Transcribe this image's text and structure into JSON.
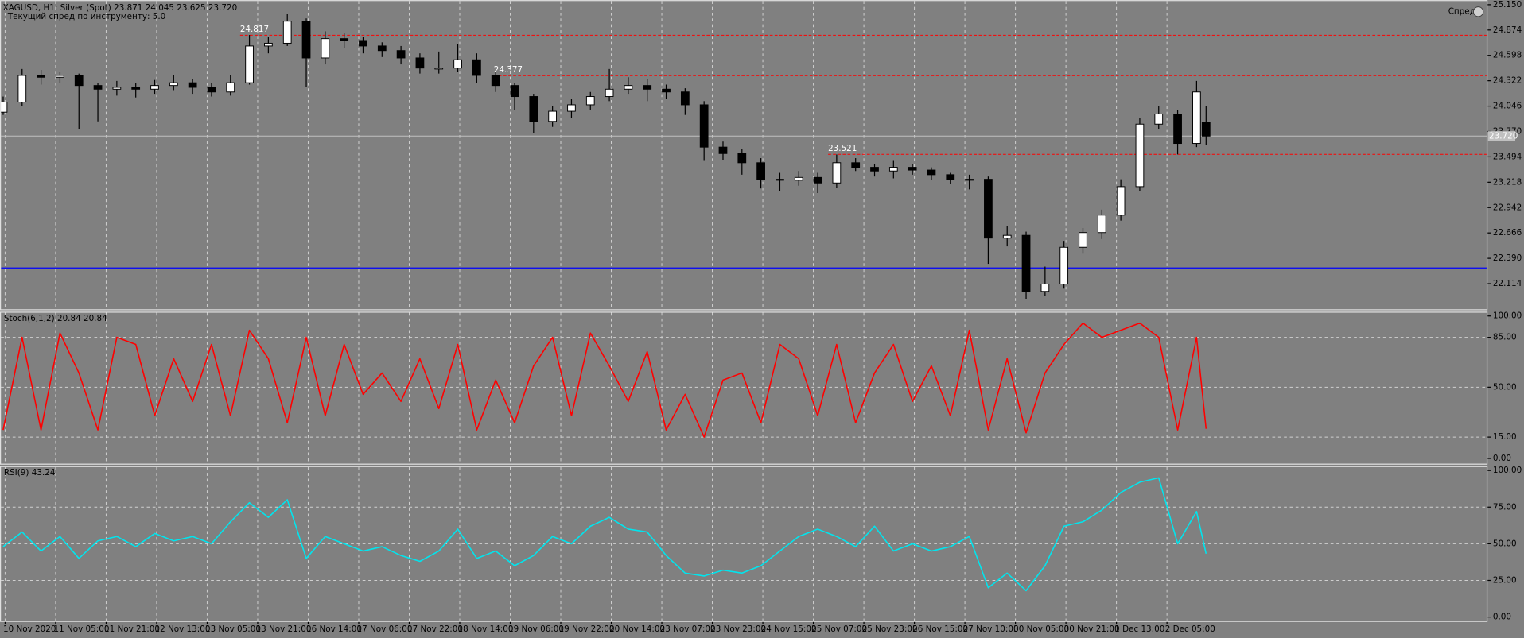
{
  "chart_data": [
    {
      "type": "candlestick",
      "title": "XAGUSD, H1:  Silver (Spot)  23.871 24.045 23.625 23.720",
      "subtitle": "Текущий спред по инструменту: 5.0",
      "button": "Спред",
      "x": [
        0,
        6,
        12,
        18,
        24,
        30,
        36,
        42,
        48,
        54,
        60,
        66,
        72,
        78,
        84,
        90,
        96,
        102,
        108,
        114,
        120,
        126,
        132,
        138,
        144,
        150,
        156,
        162,
        168,
        174,
        180,
        186,
        192,
        198,
        204,
        210,
        216,
        222,
        228,
        234,
        240,
        246,
        252,
        258,
        264,
        270,
        276,
        282,
        288,
        294,
        300,
        306,
        312,
        318,
        324,
        330,
        336,
        342,
        348,
        354,
        360,
        366,
        372,
        378,
        381
      ],
      "ohlc": [
        [
          23.98,
          24.15,
          23.95,
          24.09
        ],
        [
          24.09,
          24.45,
          24.05,
          24.38
        ],
        [
          24.38,
          24.44,
          24.28,
          24.36
        ],
        [
          24.36,
          24.42,
          24.3,
          24.38
        ],
        [
          24.38,
          24.4,
          23.8,
          24.27
        ],
        [
          24.27,
          24.3,
          23.88,
          24.23
        ],
        [
          24.23,
          24.32,
          24.16,
          24.25
        ],
        [
          24.25,
          24.3,
          24.14,
          24.23
        ],
        [
          24.23,
          24.33,
          24.18,
          24.27
        ],
        [
          24.27,
          24.38,
          24.22,
          24.3
        ],
        [
          24.3,
          24.34,
          24.18,
          24.25
        ],
        [
          24.25,
          24.3,
          24.15,
          24.2
        ],
        [
          24.2,
          24.38,
          24.16,
          24.3
        ],
        [
          24.3,
          24.82,
          24.28,
          24.7
        ],
        [
          24.7,
          24.8,
          24.62,
          24.73
        ],
        [
          24.73,
          25.05,
          24.7,
          24.97
        ],
        [
          24.97,
          25.0,
          24.25,
          24.57
        ],
        [
          24.57,
          24.86,
          24.5,
          24.78
        ],
        [
          24.78,
          24.84,
          24.68,
          24.76
        ],
        [
          24.76,
          24.8,
          24.62,
          24.7
        ],
        [
          24.7,
          24.74,
          24.58,
          24.65
        ],
        [
          24.65,
          24.7,
          24.5,
          24.57
        ],
        [
          24.57,
          24.62,
          24.4,
          24.46
        ],
        [
          24.46,
          24.64,
          24.4,
          24.46
        ],
        [
          24.46,
          24.72,
          24.42,
          24.55
        ],
        [
          24.55,
          24.62,
          24.3,
          24.38
        ],
        [
          24.38,
          24.42,
          24.2,
          24.27
        ],
        [
          24.27,
          24.3,
          24.0,
          24.15
        ],
        [
          24.15,
          24.18,
          23.75,
          23.88
        ],
        [
          23.88,
          24.05,
          23.82,
          23.99
        ],
        [
          23.99,
          24.12,
          23.92,
          24.06
        ],
        [
          24.06,
          24.2,
          24.0,
          24.15
        ],
        [
          24.15,
          24.45,
          24.1,
          24.23
        ],
        [
          24.23,
          24.36,
          24.18,
          24.27
        ],
        [
          24.27,
          24.34,
          24.1,
          24.23
        ],
        [
          24.23,
          24.28,
          24.12,
          24.2
        ],
        [
          24.2,
          24.24,
          23.95,
          24.06
        ],
        [
          24.06,
          24.1,
          23.45,
          23.6
        ],
        [
          23.6,
          23.66,
          23.46,
          23.53
        ],
        [
          23.53,
          23.58,
          23.3,
          23.43
        ],
        [
          23.43,
          23.48,
          23.15,
          23.25
        ],
        [
          23.25,
          23.32,
          23.12,
          23.24
        ],
        [
          23.24,
          23.34,
          23.18,
          23.27
        ],
        [
          23.27,
          23.32,
          23.1,
          23.21
        ],
        [
          23.21,
          23.52,
          23.16,
          23.43
        ],
        [
          23.43,
          23.48,
          23.34,
          23.38
        ],
        [
          23.38,
          23.42,
          23.28,
          23.34
        ],
        [
          23.34,
          23.45,
          23.26,
          23.38
        ],
        [
          23.38,
          23.42,
          23.3,
          23.35
        ],
        [
          23.35,
          23.38,
          23.24,
          23.3
        ],
        [
          23.3,
          23.32,
          23.2,
          23.25
        ],
        [
          23.25,
          23.3,
          23.14,
          23.25
        ],
        [
          23.25,
          23.28,
          22.33,
          22.61
        ],
        [
          22.61,
          22.74,
          22.52,
          22.64
        ],
        [
          22.64,
          22.68,
          21.95,
          22.03
        ],
        [
          22.03,
          22.3,
          21.98,
          22.11
        ],
        [
          22.11,
          22.58,
          22.06,
          22.51
        ],
        [
          22.51,
          22.72,
          22.44,
          22.67
        ],
        [
          22.67,
          22.92,
          22.6,
          22.86
        ],
        [
          22.86,
          23.25,
          22.8,
          23.17
        ],
        [
          23.17,
          23.92,
          23.12,
          23.85
        ],
        [
          23.85,
          24.05,
          23.8,
          23.96
        ],
        [
          23.96,
          24.0,
          23.52,
          23.64
        ],
        [
          23.64,
          24.32,
          23.6,
          24.2
        ],
        [
          23.871,
          24.045,
          23.625,
          23.72
        ]
      ],
      "bull_color": "#ffffff",
      "bear_color": "#000000",
      "wick_color": "#000000",
      "xlim": [
        -1,
        470
      ],
      "xticks": [
        {
          "value": 0,
          "label": "10 Nov 2020"
        },
        {
          "value": 16,
          "label": "11 Nov 05:00"
        },
        {
          "value": 32,
          "label": "11 Nov 21:00"
        },
        {
          "value": 48,
          "label": "12 Nov 13:00"
        },
        {
          "value": 64,
          "label": "13 Nov 05:00"
        },
        {
          "value": 80,
          "label": "13 Nov 21:00"
        },
        {
          "value": 96,
          "label": "16 Nov 14:00"
        },
        {
          "value": 112,
          "label": "17 Nov 06:00"
        },
        {
          "value": 128,
          "label": "17 Nov 22:00"
        },
        {
          "value": 144,
          "label": "18 Nov 14:00"
        },
        {
          "value": 160,
          "label": "19 Nov 06:00"
        },
        {
          "value": 176,
          "label": "19 Nov 22:00"
        },
        {
          "value": 192,
          "label": "20 Nov 14:00"
        },
        {
          "value": 208,
          "label": "23 Nov 07:00"
        },
        {
          "value": 224,
          "label": "23 Nov 23:00"
        },
        {
          "value": 240,
          "label": "24 Nov 15:00"
        },
        {
          "value": 256,
          "label": "25 Nov 07:00"
        },
        {
          "value": 272,
          "label": "25 Nov 23:00"
        },
        {
          "value": 288,
          "label": "26 Nov 15:00"
        },
        {
          "value": 304,
          "label": "27 Nov 10:00"
        },
        {
          "value": 320,
          "label": "30 Nov 05:00"
        },
        {
          "value": 336,
          "label": "30 Nov 21:00"
        },
        {
          "value": 352,
          "label": "1 Dec 13:00"
        },
        {
          "value": 368,
          "label": "2 Dec 05:00"
        }
      ],
      "ylim": [
        21.83,
        25.2
      ],
      "yticks": [
        {
          "value": 25.15,
          "label": "25.150"
        },
        {
          "value": 24.874,
          "label": "24.874"
        },
        {
          "value": 24.598,
          "label": "24.598"
        },
        {
          "value": 24.322,
          "label": "24.322"
        },
        {
          "value": 24.046,
          "label": "24.046"
        },
        {
          "value": 23.77,
          "label": "23.770"
        },
        {
          "value": 23.494,
          "label": "23.494"
        },
        {
          "value": 23.218,
          "label": "23.218"
        },
        {
          "value": 22.942,
          "label": "22.942"
        },
        {
          "value": 22.666,
          "label": "22.666"
        },
        {
          "value": 22.39,
          "label": "22.390"
        },
        {
          "value": 22.114,
          "label": "22.114"
        }
      ],
      "levels": [
        24.817,
        24.377,
        23.521
      ],
      "level_color": "#ff0000",
      "support": 22.285,
      "support_color": "#0000ff",
      "current_price": {
        "value": 23.72,
        "label": "23.720"
      },
      "grid": "x"
    },
    {
      "type": "line",
      "series": [
        {
          "name": "Stoch(6,1,2)",
          "color": "#ff0000",
          "values": [
            20,
            85,
            20,
            88,
            60,
            20,
            85,
            80,
            30,
            70,
            40,
            80,
            30,
            90,
            70,
            25,
            85,
            30,
            80,
            45,
            60,
            40,
            70,
            35,
            80,
            20,
            55,
            25,
            65,
            85,
            30,
            88,
            65,
            40,
            75,
            20,
            45,
            15,
            55,
            60,
            25,
            80,
            70,
            30,
            80,
            25,
            60,
            80,
            40,
            65,
            30,
            90,
            20,
            70,
            18,
            60,
            80,
            95,
            85,
            90,
            95,
            85,
            20,
            85,
            20.84
          ]
        }
      ],
      "ylim": [
        -4,
        103
      ],
      "yticks": [
        {
          "value": 100,
          "label": "100.00"
        },
        {
          "value": 85,
          "label": "85.00"
        },
        {
          "value": 50,
          "label": "50.00"
        },
        {
          "value": 15,
          "label": "15.00"
        },
        {
          "value": 0,
          "label": "0.00"
        }
      ],
      "grid": "both"
    },
    {
      "type": "line",
      "series": [
        {
          "name": "RSI(9)",
          "color": "#00e5ee",
          "values": [
            48,
            58,
            45,
            55,
            40,
            52,
            55,
            48,
            57,
            52,
            55,
            50,
            65,
            78,
            68,
            80,
            40,
            55,
            50,
            45,
            48,
            42,
            38,
            45,
            60,
            40,
            45,
            35,
            42,
            55,
            50,
            62,
            68,
            60,
            58,
            42,
            30,
            28,
            32,
            30,
            35,
            45,
            55,
            60,
            55,
            48,
            62,
            45,
            50,
            45,
            48,
            55,
            20,
            30,
            18,
            35,
            62,
            65,
            73,
            85,
            92,
            95,
            50,
            72,
            43.24
          ]
        }
      ],
      "ylim": [
        -3,
        103
      ],
      "yticks": [
        {
          "value": 100,
          "label": "100.00"
        },
        {
          "value": 75,
          "label": "75.00"
        },
        {
          "value": 50,
          "label": "50.00"
        },
        {
          "value": 25,
          "label": "25.00"
        },
        {
          "value": 0,
          "label": "0.00"
        }
      ],
      "grid": "both"
    }
  ]
}
